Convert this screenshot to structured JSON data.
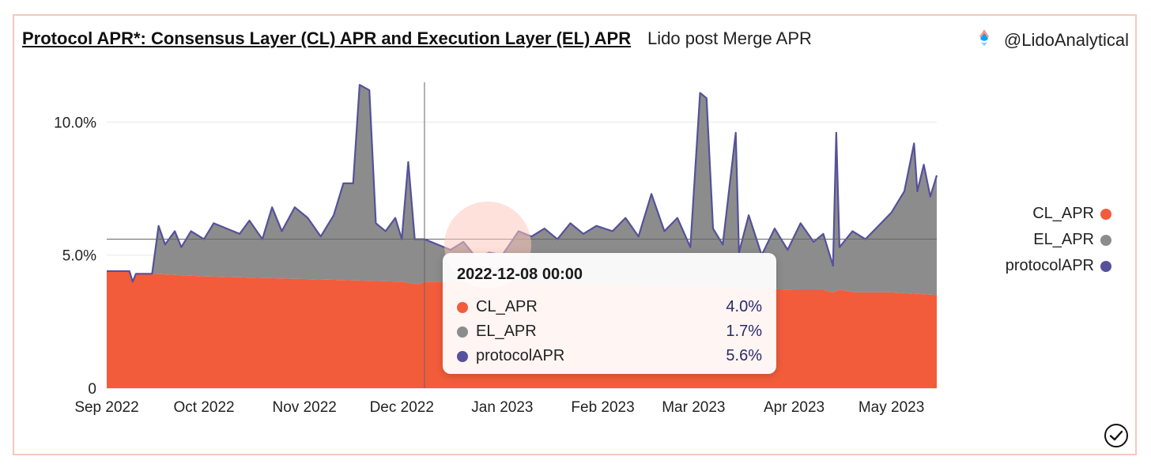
{
  "header": {
    "title": "Protocol APR*: Consensus Layer (CL) APR and Execution Layer (EL) APR",
    "subtitle": "Lido post Merge APR",
    "handle": "@LidoAnalytical"
  },
  "colors": {
    "CL_APR": "#f25c3b",
    "EL_APR": "#8c8c8c",
    "protocolAPR": "#55519a"
  },
  "tooltip": {
    "date": "2022-12-08 00:00",
    "rows": [
      {
        "name": "CL_APR",
        "value": "4.0%"
      },
      {
        "name": "EL_APR",
        "value": "1.7%"
      },
      {
        "name": "protocolAPR",
        "value": "5.6%"
      }
    ]
  },
  "chart_data": {
    "type": "area",
    "stacked": true,
    "x_start": "2022-09-01",
    "x_end": "2023-05-15",
    "x_tick_labels": [
      "Sep 2022",
      "Oct 2022",
      "Nov 2022",
      "Dec 2022",
      "Jan 2023",
      "Feb 2023",
      "Mar 2023",
      "Apr 2023",
      "May 2023"
    ],
    "y_tick_labels": [
      "0",
      "5.0%",
      "10.0%"
    ],
    "ylim": [
      0,
      11.5
    ],
    "legend": "right",
    "grid": true,
    "hover_date": "2022-12-08",
    "hover_value": 5.6,
    "series": [
      {
        "name": "CL_APR",
        "color": "#f25c3b",
        "points": [
          [
            "2022-09-01",
            4.4
          ],
          [
            "2022-09-08",
            4.4
          ],
          [
            "2022-09-09",
            4.0
          ],
          [
            "2022-09-10",
            4.3
          ],
          [
            "2022-09-15",
            4.3
          ],
          [
            "2022-10-01",
            4.2
          ],
          [
            "2022-11-01",
            4.1
          ],
          [
            "2022-12-01",
            4.0
          ],
          [
            "2022-12-06",
            3.9
          ],
          [
            "2022-12-08",
            4.0
          ],
          [
            "2023-01-01",
            4.0
          ],
          [
            "2023-02-01",
            3.9
          ],
          [
            "2023-03-01",
            3.8
          ],
          [
            "2023-04-01",
            3.7
          ],
          [
            "2023-04-10",
            3.7
          ],
          [
            "2023-04-13",
            3.6
          ],
          [
            "2023-04-15",
            3.7
          ],
          [
            "2023-04-20",
            3.6
          ],
          [
            "2023-05-01",
            3.6
          ],
          [
            "2023-05-15",
            3.5
          ]
        ]
      },
      {
        "name": "protocolAPR",
        "color": "#55519a",
        "points": [
          [
            "2022-09-01",
            4.4
          ],
          [
            "2022-09-08",
            4.4
          ],
          [
            "2022-09-09",
            4.0
          ],
          [
            "2022-09-10",
            4.3
          ],
          [
            "2022-09-15",
            4.3
          ],
          [
            "2022-09-17",
            6.1
          ],
          [
            "2022-09-19",
            5.4
          ],
          [
            "2022-09-22",
            5.9
          ],
          [
            "2022-09-24",
            5.3
          ],
          [
            "2022-09-27",
            5.9
          ],
          [
            "2022-10-01",
            5.6
          ],
          [
            "2022-10-04",
            6.2
          ],
          [
            "2022-10-08",
            6.0
          ],
          [
            "2022-10-12",
            5.8
          ],
          [
            "2022-10-15",
            6.3
          ],
          [
            "2022-10-19",
            5.6
          ],
          [
            "2022-10-22",
            6.8
          ],
          [
            "2022-10-25",
            5.9
          ],
          [
            "2022-10-29",
            6.8
          ],
          [
            "2022-11-02",
            6.4
          ],
          [
            "2022-11-06",
            5.7
          ],
          [
            "2022-11-10",
            6.5
          ],
          [
            "2022-11-13",
            7.7
          ],
          [
            "2022-11-16",
            7.7
          ],
          [
            "2022-11-18",
            11.4
          ],
          [
            "2022-11-21",
            11.2
          ],
          [
            "2022-11-23",
            6.2
          ],
          [
            "2022-11-26",
            5.9
          ],
          [
            "2022-11-29",
            6.4
          ],
          [
            "2022-12-01",
            5.6
          ],
          [
            "2022-12-03",
            8.5
          ],
          [
            "2022-12-05",
            5.6
          ],
          [
            "2022-12-08",
            5.6
          ],
          [
            "2022-12-12",
            5.4
          ],
          [
            "2022-12-16",
            5.2
          ],
          [
            "2022-12-20",
            5.5
          ],
          [
            "2022-12-24",
            4.9
          ],
          [
            "2022-12-28",
            5.1
          ],
          [
            "2023-01-01",
            5.0
          ],
          [
            "2023-01-06",
            5.9
          ],
          [
            "2023-01-10",
            5.7
          ],
          [
            "2023-01-14",
            6.0
          ],
          [
            "2023-01-18",
            5.6
          ],
          [
            "2023-01-22",
            6.2
          ],
          [
            "2023-01-26",
            5.8
          ],
          [
            "2023-01-30",
            6.1
          ],
          [
            "2023-02-04",
            5.9
          ],
          [
            "2023-02-08",
            6.4
          ],
          [
            "2023-02-12",
            5.7
          ],
          [
            "2023-02-16",
            7.3
          ],
          [
            "2023-02-20",
            5.9
          ],
          [
            "2023-02-24",
            6.4
          ],
          [
            "2023-02-28",
            5.3
          ],
          [
            "2023-03-03",
            11.1
          ],
          [
            "2023-03-05",
            10.9
          ],
          [
            "2023-03-07",
            6.0
          ],
          [
            "2023-03-10",
            5.4
          ],
          [
            "2023-03-14",
            9.6
          ],
          [
            "2023-03-15",
            5.1
          ],
          [
            "2023-03-18",
            6.5
          ],
          [
            "2023-03-22",
            5.0
          ],
          [
            "2023-03-26",
            6.0
          ],
          [
            "2023-03-30",
            5.2
          ],
          [
            "2023-04-03",
            6.2
          ],
          [
            "2023-04-07",
            5.5
          ],
          [
            "2023-04-10",
            5.8
          ],
          [
            "2023-04-13",
            4.6
          ],
          [
            "2023-04-14",
            9.6
          ],
          [
            "2023-04-15",
            5.3
          ],
          [
            "2023-04-19",
            5.9
          ],
          [
            "2023-04-23",
            5.6
          ],
          [
            "2023-04-27",
            6.1
          ],
          [
            "2023-05-01",
            6.6
          ],
          [
            "2023-05-05",
            7.4
          ],
          [
            "2023-05-08",
            9.2
          ],
          [
            "2023-05-09",
            7.4
          ],
          [
            "2023-05-11",
            8.4
          ],
          [
            "2023-05-13",
            7.2
          ],
          [
            "2023-05-15",
            8.0
          ]
        ]
      }
    ],
    "derived_series": [
      {
        "name": "EL_APR",
        "color": "#8c8c8c",
        "definition": "protocolAPR minus CL_APR"
      }
    ]
  }
}
